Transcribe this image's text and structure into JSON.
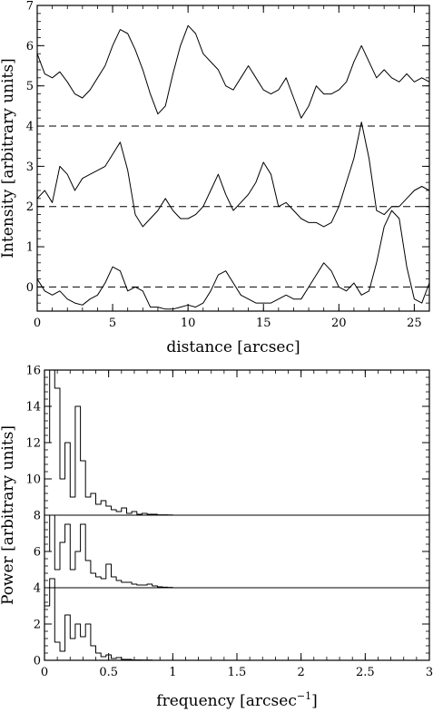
{
  "chart_data": [
    {
      "type": "line",
      "xlabel": "distance [arcsec]",
      "ylabel": "Intensity [arbitrary units]",
      "xlim": [
        0,
        26
      ],
      "ylim": [
        -0.6,
        7
      ],
      "xticks": [
        0,
        5,
        10,
        15,
        20,
        25
      ],
      "yticks": [
        0,
        1,
        2,
        3,
        4,
        5,
        6,
        7
      ],
      "dashed_baselines": [
        0,
        2,
        4
      ],
      "series": [
        {
          "x": [
            0,
            0.5,
            1,
            1.5,
            2,
            2.5,
            3,
            3.5,
            4,
            4.5,
            5,
            5.5,
            6,
            6.5,
            7,
            7.5,
            8,
            8.5,
            9,
            9.5,
            10,
            10.5,
            11,
            11.5,
            12,
            12.5,
            13,
            13.5,
            14,
            14.5,
            15,
            15.5,
            16,
            16.5,
            17,
            17.5,
            18,
            18.5,
            19,
            19.5,
            20,
            20.5,
            21,
            21.5,
            22,
            22.5,
            23,
            23.5,
            24,
            24.5,
            25,
            25.5,
            26
          ],
          "y": [
            5.8,
            5.3,
            5.2,
            5.35,
            5.1,
            4.8,
            4.7,
            4.9,
            5.2,
            5.5,
            6.0,
            6.4,
            6.3,
            5.9,
            5.4,
            4.8,
            4.3,
            4.5,
            5.3,
            6.0,
            6.5,
            6.3,
            5.8,
            5.6,
            5.4,
            5.0,
            4.9,
            5.2,
            5.5,
            5.2,
            4.9,
            4.8,
            4.9,
            5.2,
            4.7,
            4.2,
            4.5,
            5.0,
            4.8,
            4.8,
            4.9,
            5.1,
            5.6,
            6.0,
            5.6,
            5.2,
            5.4,
            5.2,
            5.1,
            5.3,
            5.1,
            5.2,
            5.1
          ]
        },
        {
          "x": [
            0,
            0.5,
            1,
            1.5,
            2,
            2.5,
            3,
            3.5,
            4,
            4.5,
            5,
            5.5,
            6,
            6.5,
            7,
            7.5,
            8,
            8.5,
            9,
            9.5,
            10,
            10.5,
            11,
            11.5,
            12,
            12.5,
            13,
            13.5,
            14,
            14.5,
            15,
            15.5,
            16,
            16.5,
            17,
            17.5,
            18,
            18.5,
            19,
            19.5,
            20,
            20.5,
            21,
            21.5,
            22,
            22.5,
            23,
            23.5,
            24,
            24.5,
            25,
            25.5,
            26
          ],
          "y": [
            2.2,
            2.4,
            2.1,
            3.0,
            2.8,
            2.4,
            2.7,
            2.8,
            2.9,
            3.0,
            3.3,
            3.6,
            2.9,
            1.8,
            1.5,
            1.7,
            1.9,
            2.2,
            1.9,
            1.7,
            1.7,
            1.8,
            2.0,
            2.4,
            2.8,
            2.3,
            1.9,
            2.1,
            2.3,
            2.6,
            3.1,
            2.8,
            2.0,
            2.1,
            1.9,
            1.7,
            1.6,
            1.6,
            1.5,
            1.6,
            2.0,
            2.6,
            3.2,
            4.1,
            3.2,
            1.9,
            1.8,
            2.0,
            2.0,
            2.2,
            2.4,
            2.5,
            2.4
          ]
        },
        {
          "x": [
            0,
            0.5,
            1,
            1.5,
            2,
            2.5,
            3,
            3.5,
            4,
            4.5,
            5,
            5.5,
            6,
            6.5,
            7,
            7.5,
            8,
            8.5,
            9,
            9.5,
            10,
            10.5,
            11,
            11.5,
            12,
            12.5,
            13,
            13.5,
            14,
            14.5,
            15,
            15.5,
            16,
            16.5,
            17,
            17.5,
            18,
            18.5,
            19,
            19.5,
            20,
            20.5,
            21,
            21.5,
            22,
            22.5,
            23,
            23.5,
            24,
            24.5,
            25,
            25.5,
            26
          ],
          "y": [
            0.2,
            -0.1,
            -0.2,
            -0.1,
            -0.3,
            -0.4,
            -0.45,
            -0.3,
            -0.2,
            0.1,
            0.5,
            0.4,
            -0.1,
            0.0,
            -0.1,
            -0.5,
            -0.5,
            -0.55,
            -0.55,
            -0.5,
            -0.45,
            -0.5,
            -0.4,
            -0.1,
            0.3,
            0.4,
            0.1,
            -0.2,
            -0.3,
            -0.4,
            -0.4,
            -0.4,
            -0.3,
            -0.2,
            -0.3,
            -0.3,
            0.0,
            0.3,
            0.6,
            0.4,
            0.0,
            -0.1,
            0.1,
            -0.2,
            -0.1,
            0.6,
            1.5,
            1.9,
            1.7,
            0.5,
            -0.3,
            -0.4,
            0.1
          ]
        }
      ]
    },
    {
      "type": "line",
      "xlabel": "frequency [arcsec",
      "xlabel_sup": "−1",
      "xlabel_end": "]",
      "ylabel": "Power [arbitrary units]",
      "xlim": [
        0,
        3
      ],
      "ylim": [
        0,
        16
      ],
      "xticks": [
        0,
        0.5,
        1,
        1.5,
        2,
        2.5,
        3
      ],
      "xtick_labels": [
        "0",
        "0.5",
        "1",
        "1.5",
        "2",
        "2.5",
        "3"
      ],
      "yticks": [
        0,
        2,
        4,
        6,
        8,
        10,
        12,
        14,
        16
      ],
      "solid_baselines": [
        4,
        8
      ],
      "series": [
        {
          "style": "step",
          "x": [
            0,
            0.04,
            0.08,
            0.12,
            0.16,
            0.2,
            0.24,
            0.28,
            0.32,
            0.36,
            0.4,
            0.44,
            0.48,
            0.52,
            0.56,
            0.6,
            0.64,
            0.68,
            0.72,
            0.76,
            0.8,
            0.84,
            0.88,
            0.92,
            0.96,
            1.0,
            3.0
          ],
          "y": [
            12,
            16,
            15,
            10,
            12,
            9,
            14,
            11,
            9,
            9.2,
            8.6,
            8.8,
            8.5,
            8.3,
            8.2,
            8.4,
            8.1,
            8.2,
            8.05,
            8.1,
            8.05,
            8.05,
            8.02,
            8.02,
            8.01,
            8.0,
            8.0
          ]
        },
        {
          "style": "step",
          "x": [
            0,
            0.04,
            0.08,
            0.12,
            0.16,
            0.2,
            0.24,
            0.28,
            0.32,
            0.36,
            0.4,
            0.44,
            0.48,
            0.52,
            0.56,
            0.6,
            0.64,
            0.68,
            0.72,
            0.76,
            0.8,
            0.84,
            0.88,
            0.92,
            0.96,
            1.0,
            3.0
          ],
          "y": [
            6,
            8,
            5,
            6.5,
            7.5,
            5,
            6,
            7.5,
            5.5,
            4.8,
            4.6,
            4.5,
            5.3,
            4.6,
            4.4,
            4.3,
            4.3,
            4.2,
            4.15,
            4.15,
            4.2,
            4.1,
            4.05,
            4.03,
            4.02,
            4.0,
            4.0
          ]
        },
        {
          "style": "step",
          "x": [
            0,
            0.04,
            0.08,
            0.12,
            0.16,
            0.2,
            0.24,
            0.28,
            0.32,
            0.36,
            0.4,
            0.44,
            0.48,
            0.52,
            0.56,
            0.6,
            0.64,
            0.68,
            0.72,
            0.76,
            0.8,
            0.84,
            0.88,
            0.92,
            0.96,
            1.0,
            3.0
          ],
          "y": [
            3,
            4.5,
            1,
            0.5,
            2.5,
            1.2,
            2,
            1.3,
            2,
            0.8,
            0.4,
            0.2,
            0.3,
            0.1,
            0.15,
            0.05,
            0.05,
            0.02,
            0.02,
            0.01,
            0.01,
            0.0,
            0.0,
            0.0,
            0.0,
            0.0,
            0.0
          ]
        }
      ]
    }
  ]
}
